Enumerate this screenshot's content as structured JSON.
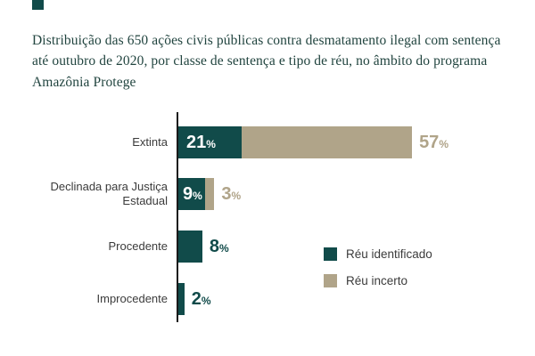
{
  "colors": {
    "accent": "#114b4a",
    "title": "#21443f",
    "axis": "#1a1a1a",
    "category_label": "#3b3b3b"
  },
  "chart_data": {
    "type": "bar",
    "orientation": "horizontal",
    "stacked": true,
    "title": "Distribuição das 650 ações civis públicas contra desmatamento ilegal com sentença até outubro de 2020, por classe de sentença e tipo de réu, no âmbito do programa Amazônia Protege",
    "categories": [
      "Extinta",
      "Declinada para Justiça Estadual",
      "Procedente",
      "Improcedente"
    ],
    "series": [
      {
        "name": "Réu identificado",
        "color": "#114b4a",
        "values": [
          21,
          9,
          8,
          2
        ]
      },
      {
        "name": "Réu incerto",
        "color": "#b0a489",
        "values": [
          57,
          3,
          0,
          0
        ]
      }
    ],
    "value_suffix": "%",
    "xlim": [
      0,
      80
    ],
    "grid": false,
    "legend_position": "bottom-right"
  }
}
